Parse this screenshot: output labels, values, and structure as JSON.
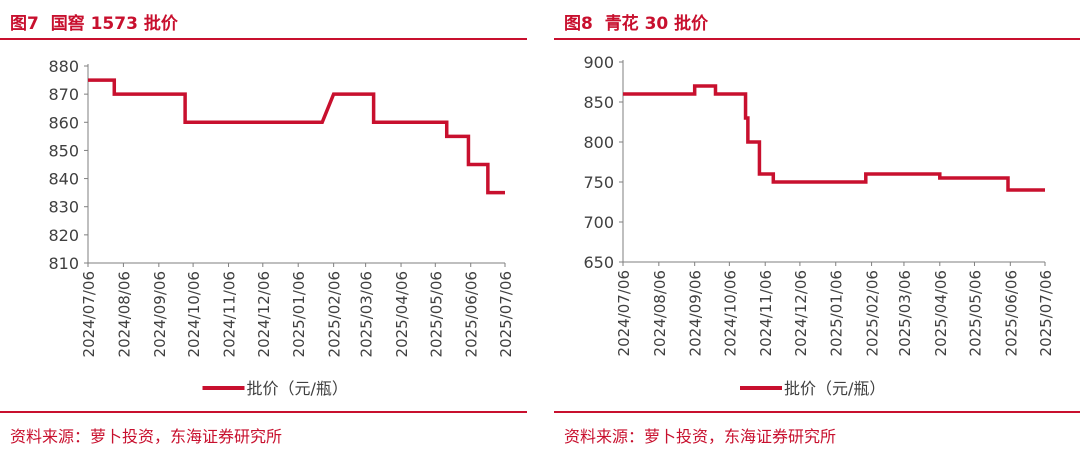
{
  "panels": [
    {
      "fig_label": "图7",
      "title": "国窖 1573 批价",
      "source": "资料来源：萝卜投资，东海证券研究所"
    },
    {
      "fig_label": "图8",
      "title": "青花 30 批价",
      "source": "资料来源：萝卜投资，东海证券研究所"
    }
  ],
  "chart_data": [
    {
      "type": "line",
      "title": "国窖 1573 批价",
      "ylim": [
        810,
        880
      ],
      "yticks": [
        880,
        870,
        860,
        850,
        840,
        830,
        820,
        810
      ],
      "xlim": [
        "2024-07-06",
        "2025-07-06"
      ],
      "xticks": [
        "2024/07/06",
        "2024/08/06",
        "2024/09/06",
        "2024/10/06",
        "2024/11/06",
        "2024/12/06",
        "2025/01/06",
        "2025/02/06",
        "2025/03/06",
        "2025/04/06",
        "2025/05/06",
        "2025/06/06",
        "2025/07/06"
      ],
      "legend": "top-bottom",
      "series": [
        {
          "name": "批价（元/瓶）",
          "color": "#c8102e",
          "points": [
            [
              "2024-07-06",
              875
            ],
            [
              "2024-07-29",
              875
            ],
            [
              "2024-07-29",
              870
            ],
            [
              "2024-09-29",
              870
            ],
            [
              "2024-09-29",
              860
            ],
            [
              "2025-01-27",
              860
            ],
            [
              "2025-02-06",
              870
            ],
            [
              "2025-03-13",
              870
            ],
            [
              "2025-03-13",
              860
            ],
            [
              "2025-05-16",
              860
            ],
            [
              "2025-05-16",
              855
            ],
            [
              "2025-06-04",
              855
            ],
            [
              "2025-06-04",
              845
            ],
            [
              "2025-06-21",
              845
            ],
            [
              "2025-06-21",
              835
            ],
            [
              "2025-07-06",
              835
            ]
          ]
        }
      ]
    },
    {
      "type": "line",
      "title": "青花 30 批价",
      "ylim": [
        650,
        900
      ],
      "yticks": [
        900,
        850,
        800,
        750,
        700,
        650
      ],
      "xlim": [
        "2024-07-06",
        "2025-07-06"
      ],
      "xticks": [
        "2024/07/06",
        "2024/08/06",
        "2024/09/06",
        "2024/10/06",
        "2024/11/06",
        "2024/12/06",
        "2025/01/06",
        "2025/02/06",
        "2025/03/06",
        "2025/04/06",
        "2025/05/06",
        "2025/06/06",
        "2025/07/06"
      ],
      "legend": "bottom",
      "series": [
        {
          "name": "批价（元/瓶）",
          "color": "#c8102e",
          "points": [
            [
              "2024-07-06",
              860
            ],
            [
              "2024-09-06",
              860
            ],
            [
              "2024-09-06",
              870
            ],
            [
              "2024-09-24",
              870
            ],
            [
              "2024-09-24",
              860
            ],
            [
              "2024-10-20",
              860
            ],
            [
              "2024-10-20",
              830
            ],
            [
              "2024-10-22",
              830
            ],
            [
              "2024-10-22",
              800
            ],
            [
              "2024-11-01",
              800
            ],
            [
              "2024-11-01",
              760
            ],
            [
              "2024-11-13",
              760
            ],
            [
              "2024-11-13",
              750
            ],
            [
              "2025-02-01",
              750
            ],
            [
              "2025-02-01",
              760
            ],
            [
              "2025-04-06",
              760
            ],
            [
              "2025-04-06",
              755
            ],
            [
              "2025-06-04",
              755
            ],
            [
              "2025-06-04",
              740
            ],
            [
              "2025-07-06",
              740
            ]
          ]
        }
      ]
    }
  ]
}
